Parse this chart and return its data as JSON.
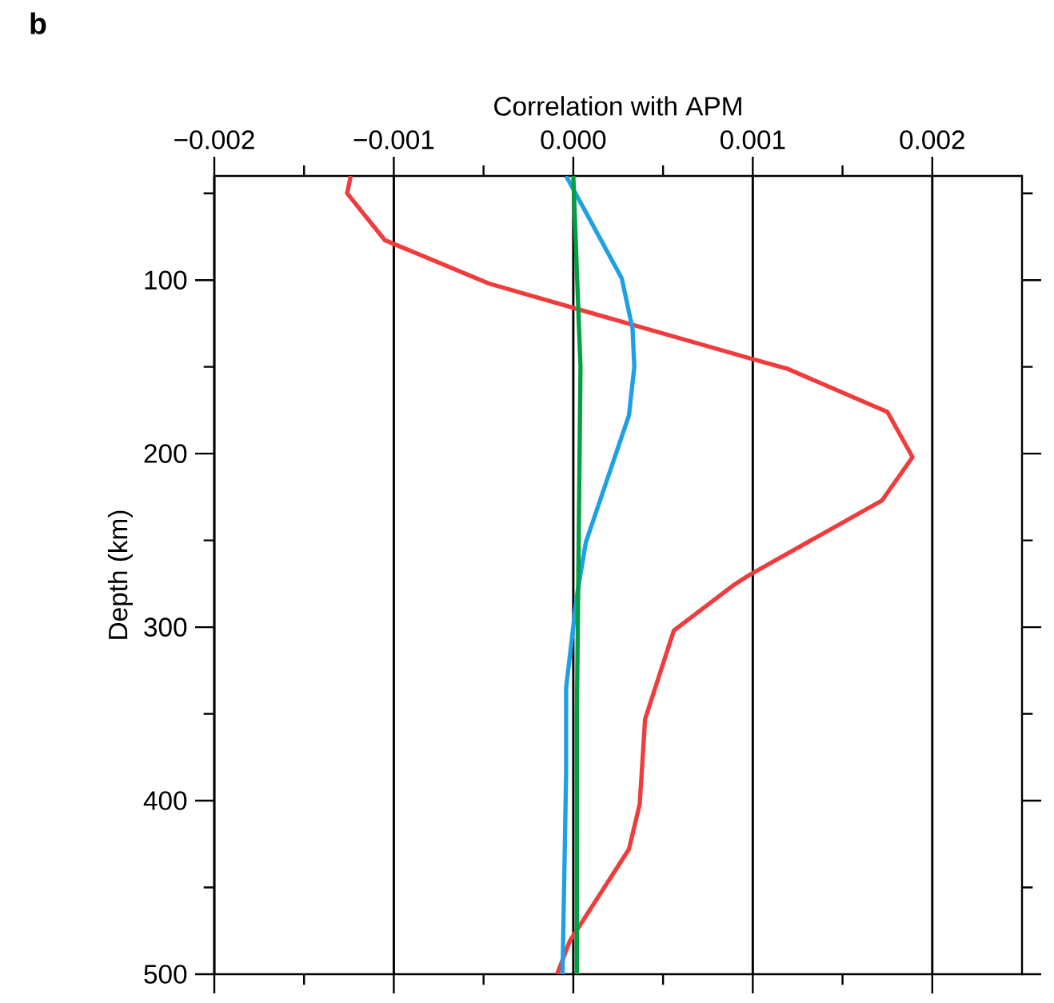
{
  "chart_data": {
    "type": "line",
    "xlabel": "Correlation with APM",
    "ylabel": "Depth (km)",
    "annotations": [
      "b"
    ],
    "xlim": [
      -0.002,
      0.0025
    ],
    "ylim": [
      500,
      40
    ],
    "xticks": [
      {
        "value": -0.002,
        "label": "−0.002"
      },
      {
        "value": -0.0015,
        "label": null
      },
      {
        "value": -0.001,
        "label": "−0.001"
      },
      {
        "value": -0.0005,
        "label": null
      },
      {
        "value": 0,
        "label": "0.000"
      },
      {
        "value": 0.0005,
        "label": null
      },
      {
        "value": 0.001,
        "label": "0.001"
      },
      {
        "value": 0.0015,
        "label": null
      },
      {
        "value": 0.002,
        "label": "0.002"
      }
    ],
    "yticks": [
      {
        "value": 50,
        "label": null
      },
      100,
      {
        "value": 150,
        "label": null
      },
      200,
      {
        "value": 250,
        "label": null
      },
      300,
      {
        "value": 350,
        "label": null
      },
      400,
      {
        "value": 450,
        "label": null
      },
      500
    ],
    "grid": "x",
    "series": [
      {
        "color": "#f03c3c",
        "x": [
          -0.00124,
          -0.00126,
          -0.00105,
          -0.00047,
          0,
          0.00098,
          0.00119,
          0.00175,
          0.00189,
          0.00172,
          0.00098,
          0.00089,
          0.00056,
          0.0004,
          0.00037,
          0.00031,
          -2e-05,
          -9e-05
        ],
        "values": [
          40,
          50,
          77,
          102,
          116,
          145,
          151,
          176,
          202,
          227,
          270,
          276,
          302,
          353,
          402,
          428,
          481,
          500
        ]
      },
      {
        "color": "#1ea0e6",
        "x": [
          -4e-05,
          0.00027,
          0.00033,
          0.00034,
          0.00031,
          7e-05,
          2e-05,
          -4e-05,
          -4e-05,
          -6e-05
        ],
        "values": [
          40,
          99,
          128,
          150,
          178,
          251,
          282,
          335,
          384,
          500
        ]
      },
      {
        "color": "#00a040",
        "x": [
          0,
          4e-05,
          3e-05,
          2e-05,
          2e-05
        ],
        "values": [
          40,
          150,
          250,
          350,
          500
        ]
      }
    ]
  }
}
